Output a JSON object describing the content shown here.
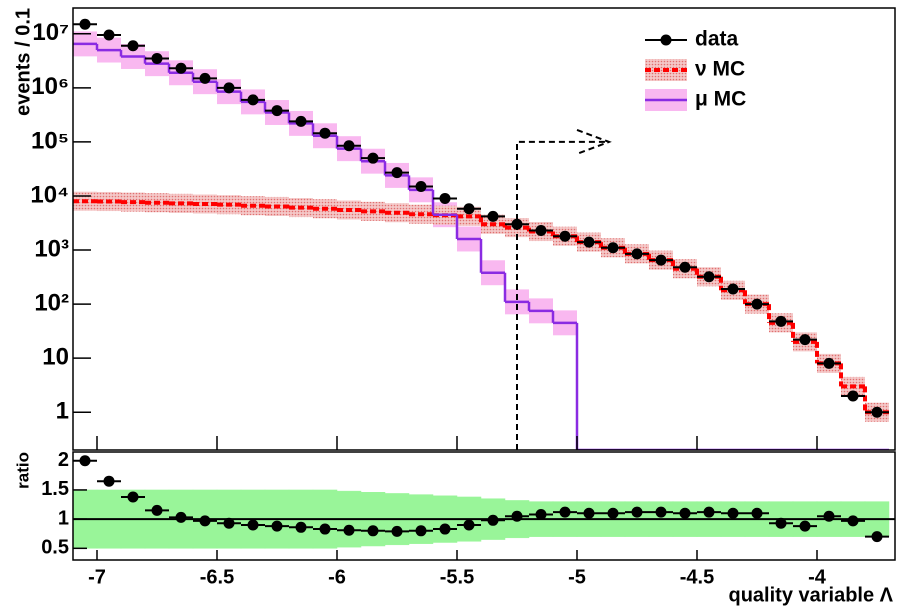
{
  "chart_data": {
    "type": "histogram",
    "ylabel": "events / 0.1",
    "ratio_ylabel": "ratio",
    "xlabel": "quality variable Λ",
    "bins": [
      -7.1,
      -7.0,
      -6.9,
      -6.8,
      -6.7,
      -6.6,
      -6.5,
      -6.4,
      -6.3,
      -6.2,
      -6.1,
      -6.0,
      -5.9,
      -5.8,
      -5.7,
      -5.6,
      -5.5,
      -5.4,
      -5.3,
      -5.2,
      -5.1,
      -5.0,
      -4.9,
      -4.8,
      -4.7,
      -4.6,
      -4.5,
      -4.4,
      -4.3,
      -4.2,
      -4.1,
      -4.0,
      -3.9,
      -3.8,
      -3.7
    ],
    "xlim": [
      -7.1,
      -3.675
    ],
    "xticks": [
      -7,
      -6.5,
      -6,
      -5.5,
      -5,
      -4.5,
      -4
    ],
    "ylim": [
      0.2,
      30000000
    ],
    "log_y": true,
    "yticks": [
      {
        "value": 1,
        "label": "1"
      },
      {
        "value": 10,
        "label": "10"
      },
      {
        "value": 100,
        "label": "10²"
      },
      {
        "value": 1000,
        "label": "10³"
      },
      {
        "value": 10000,
        "label": "10⁴"
      },
      {
        "value": 100000,
        "label": "10⁵"
      },
      {
        "value": 1000000,
        "label": "10⁶"
      },
      {
        "value": 10000000,
        "label": "10⁷"
      }
    ],
    "cut_value": -5.25,
    "series": [
      {
        "name": "data",
        "color": "#000000",
        "style": "points",
        "values": [
          15000000,
          9500000,
          6000000,
          3500000,
          2300000,
          1500000,
          1000000,
          600000,
          380000,
          240000,
          145000,
          85000,
          50000,
          27000,
          15000,
          9000,
          5800,
          4200,
          3000,
          2300,
          1800,
          1400,
          1100,
          850,
          650,
          480,
          320,
          190,
          100,
          48,
          22,
          8,
          2,
          1
        ]
      },
      {
        "name": "ν MC",
        "color": "#ff0000",
        "band_color": "#e07070",
        "style": "dashed",
        "band_factor": 1.5,
        "values": [
          8000,
          7900,
          7700,
          7500,
          7300,
          7100,
          6900,
          6600,
          6400,
          6100,
          5800,
          5500,
          5200,
          4900,
          4600,
          4400,
          4200,
          3000,
          2600,
          2200,
          1800,
          1400,
          1100,
          850,
          650,
          450,
          320,
          180,
          100,
          45,
          20,
          8,
          3,
          1
        ]
      },
      {
        "name": "μ MC",
        "color": "#8a2be2",
        "band_color": "#f9b8f0",
        "style": "solid",
        "band_factor": 1.7,
        "values": [
          6500000,
          5000000,
          3800000,
          2800000,
          1900000,
          1300000,
          850000,
          550000,
          350000,
          220000,
          130000,
          75000,
          44000,
          24000,
          13000,
          4500,
          1600,
          380,
          110,
          75,
          45,
          0,
          0,
          0,
          0,
          0,
          0,
          0,
          0,
          0,
          0,
          0,
          0,
          0
        ]
      }
    ],
    "ratio": {
      "ylim": [
        0.3,
        2.15
      ],
      "yticks": [
        0.5,
        1,
        {
          "value": 1.5,
          "label": "1.5"
        },
        2
      ],
      "reference": 1,
      "band_color": "#99f599",
      "band_halfwidth": [
        0.5,
        0.5,
        0.5,
        0.5,
        0.5,
        0.5,
        0.5,
        0.5,
        0.5,
        0.5,
        0.5,
        0.48,
        0.46,
        0.44,
        0.42,
        0.4,
        0.38,
        0.35,
        0.32,
        0.3,
        0.3,
        0.3,
        0.3,
        0.3,
        0.3,
        0.3,
        0.3,
        0.3,
        0.3,
        0.3,
        0.3,
        0.3,
        0.3,
        0.3
      ],
      "values": [
        2.0,
        1.65,
        1.38,
        1.15,
        1.03,
        0.97,
        0.93,
        0.9,
        0.88,
        0.86,
        0.83,
        0.81,
        0.8,
        0.79,
        0.8,
        0.83,
        0.9,
        0.98,
        1.05,
        1.08,
        1.12,
        1.1,
        1.1,
        1.12,
        1.12,
        1.1,
        1.12,
        1.1,
        1.1,
        0.93,
        0.88,
        1.05,
        0.97,
        0.7
      ]
    }
  }
}
